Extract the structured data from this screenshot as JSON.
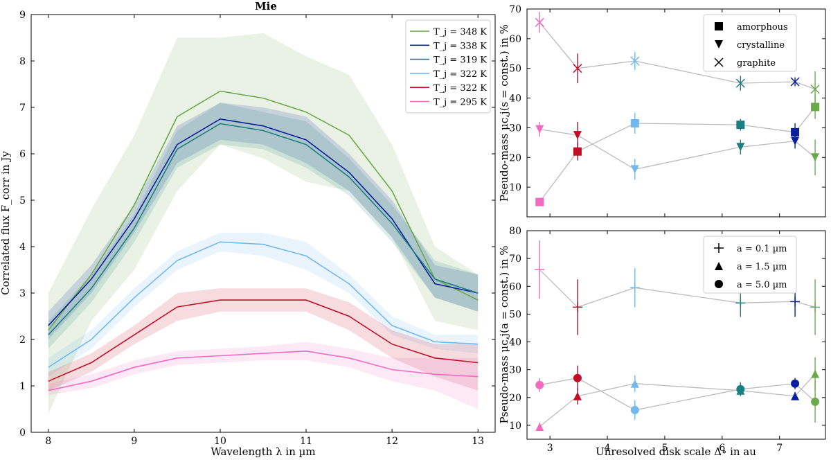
{
  "chart_data": [
    {
      "type": "line",
      "title": "Mie",
      "xlabel": "Wavelength λ in µm",
      "ylabel": "Correlated flux F_corr in Jy",
      "xlim": [
        7.8,
        13.2
      ],
      "ylim": [
        0,
        9
      ],
      "xticks": [
        8,
        9,
        10,
        11,
        12,
        13
      ],
      "yticks": [
        0,
        1,
        2,
        3,
        4,
        5,
        6,
        7,
        8,
        9
      ],
      "legend_position": "top-right",
      "x": [
        8.0,
        8.5,
        9.0,
        9.5,
        10.0,
        10.5,
        11.0,
        11.5,
        12.0,
        12.5,
        13.0
      ],
      "series": [
        {
          "name": "T_j = 348 K",
          "color": "#6aaa4a",
          "values": [
            2.2,
            3.4,
            4.9,
            6.8,
            7.35,
            7.2,
            6.9,
            6.4,
            5.2,
            3.3,
            2.85
          ],
          "lower": [
            0.4,
            2.4,
            3.5,
            5.2,
            6.2,
            5.9,
            5.4,
            5.2,
            4.2,
            2.4,
            2.2
          ],
          "upper": [
            3.0,
            4.8,
            6.4,
            8.5,
            8.5,
            8.6,
            8.1,
            7.7,
            6.2,
            4.0,
            3.4
          ]
        },
        {
          "name": "T_j = 338 K",
          "color": "#0a1f9e",
          "values": [
            2.3,
            3.3,
            4.6,
            6.2,
            6.75,
            6.6,
            6.3,
            5.6,
            4.6,
            3.2,
            3.0
          ],
          "lower": [
            2.0,
            3.0,
            4.3,
            5.8,
            6.3,
            6.2,
            5.8,
            5.2,
            4.2,
            2.9,
            2.6
          ],
          "upper": [
            2.6,
            3.6,
            4.9,
            6.6,
            7.1,
            7.0,
            6.8,
            6.0,
            5.0,
            3.6,
            3.4
          ]
        },
        {
          "name": "T_j = 319 K",
          "color": "#1a7f80",
          "values": [
            2.1,
            3.1,
            4.4,
            6.1,
            6.65,
            6.5,
            6.2,
            5.5,
            4.5,
            3.3,
            3.0
          ],
          "lower": [
            1.8,
            2.8,
            4.1,
            5.7,
            6.2,
            6.1,
            5.7,
            5.1,
            4.1,
            2.9,
            2.6
          ],
          "upper": [
            2.4,
            3.4,
            4.7,
            6.5,
            7.1,
            6.9,
            6.7,
            5.9,
            4.9,
            3.7,
            3.4
          ]
        },
        {
          "name": "T_j = 322 K",
          "color": "#72b8ee",
          "values": [
            1.4,
            2.0,
            2.9,
            3.7,
            4.1,
            4.05,
            3.8,
            3.2,
            2.3,
            1.95,
            1.9
          ],
          "lower": [
            1.2,
            1.8,
            2.7,
            3.5,
            3.9,
            3.8,
            3.5,
            3.0,
            2.1,
            1.8,
            1.7
          ],
          "upper": [
            1.6,
            2.2,
            3.1,
            3.9,
            4.3,
            4.3,
            4.1,
            3.4,
            2.5,
            2.1,
            2.1
          ]
        },
        {
          "name": "T_j = 322 K",
          "color": "#c01028",
          "values": [
            1.1,
            1.5,
            2.1,
            2.7,
            2.85,
            2.85,
            2.85,
            2.5,
            1.9,
            1.6,
            1.5
          ],
          "lower": [
            0.9,
            1.3,
            1.9,
            2.4,
            2.6,
            2.6,
            2.6,
            2.2,
            1.6,
            1.2,
            0.9
          ],
          "upper": [
            1.3,
            1.7,
            2.3,
            3.0,
            3.1,
            3.1,
            3.1,
            2.8,
            2.2,
            1.9,
            1.9
          ]
        },
        {
          "name": "T_j = 295 K",
          "color": "#f06ac0",
          "values": [
            0.9,
            1.1,
            1.4,
            1.6,
            1.65,
            1.7,
            1.75,
            1.6,
            1.35,
            1.25,
            1.2
          ],
          "lower": [
            0.8,
            0.95,
            1.25,
            1.45,
            1.5,
            1.55,
            1.55,
            1.4,
            1.1,
            0.9,
            0.5
          ],
          "upper": [
            1.05,
            1.25,
            1.55,
            1.75,
            1.8,
            1.85,
            1.95,
            1.8,
            1.6,
            1.6,
            1.6
          ]
        }
      ]
    },
    {
      "type": "scatter",
      "title": "",
      "xlabel": "",
      "ylabel": "Pseudo-mass μᴄ,j(s = const.) in %",
      "xlim": [
        2.6,
        7.8
      ],
      "ylim": [
        0,
        70
      ],
      "xticks": [
        3,
        4,
        5,
        6,
        7
      ],
      "yticks": [
        10,
        20,
        30,
        40,
        50,
        60,
        70
      ],
      "legend_position": "top-right",
      "legend": [
        "amorphous",
        "crystalline",
        "graphite"
      ],
      "x": [
        2.82,
        3.48,
        4.48,
        6.32,
        7.27,
        7.62
      ],
      "point_colors": [
        "#f06ac0",
        "#c01028",
        "#72b8ee",
        "#1a7f80",
        "#0a1f9e",
        "#6aaa4a"
      ],
      "series": [
        {
          "name": "amorphous",
          "marker": "square",
          "values": [
            5,
            22,
            31.5,
            31,
            28.5,
            37
          ],
          "errors": [
            0.5,
            3,
            3.5,
            2,
            3,
            4
          ]
        },
        {
          "name": "crystalline",
          "marker": "triangle-down",
          "values": [
            29.5,
            27.5,
            16,
            23.5,
            25.5,
            20
          ],
          "errors": [
            2.5,
            4.5,
            3.5,
            2.5,
            2.5,
            6
          ]
        },
        {
          "name": "graphite",
          "marker": "x",
          "values": [
            65.5,
            50,
            52.5,
            45,
            45.5,
            43
          ],
          "errors": [
            3.5,
            5,
            3,
            2.5,
            1.5,
            6
          ]
        }
      ]
    },
    {
      "type": "scatter",
      "title": "",
      "xlabel": "Unresolved disk scale Δ∘ in au",
      "ylabel": "Pseudo-mass μᴄ,j(a = const.) in %",
      "xlim": [
        2.6,
        7.8
      ],
      "ylim": [
        5,
        80
      ],
      "xticks": [
        3,
        4,
        5,
        6,
        7
      ],
      "yticks": [
        10,
        20,
        30,
        40,
        50,
        60,
        70,
        80
      ],
      "legend_position": "top-right",
      "legend": [
        "a = 0.1 µm",
        "a = 1.5 µm",
        "a = 5.0 µm"
      ],
      "x": [
        2.82,
        3.48,
        4.48,
        6.32,
        7.27,
        7.62
      ],
      "point_colors": [
        "#f06ac0",
        "#c01028",
        "#72b8ee",
        "#1a7f80",
        "#0a1f9e",
        "#6aaa4a"
      ],
      "series": [
        {
          "name": "a = 0.1 µm",
          "marker": "plus",
          "values": [
            66,
            52.5,
            59.5,
            54,
            54.5,
            52.5
          ],
          "errors": [
            10.5,
            10,
            7,
            5,
            5.5,
            10
          ]
        },
        {
          "name": "a = 1.5 µm",
          "marker": "triangle-up",
          "values": [
            9.5,
            20.5,
            25,
            22.5,
            20.5,
            28.5
          ],
          "errors": [
            1.5,
            3,
            3,
            2,
            1.5,
            6
          ]
        },
        {
          "name": "a = 5.0 µm",
          "marker": "circle",
          "values": [
            24.5,
            27,
            15.5,
            23,
            25,
            18.5
          ],
          "errors": [
            2.5,
            4.5,
            3.5,
            2.5,
            2,
            7.5
          ]
        }
      ]
    }
  ]
}
